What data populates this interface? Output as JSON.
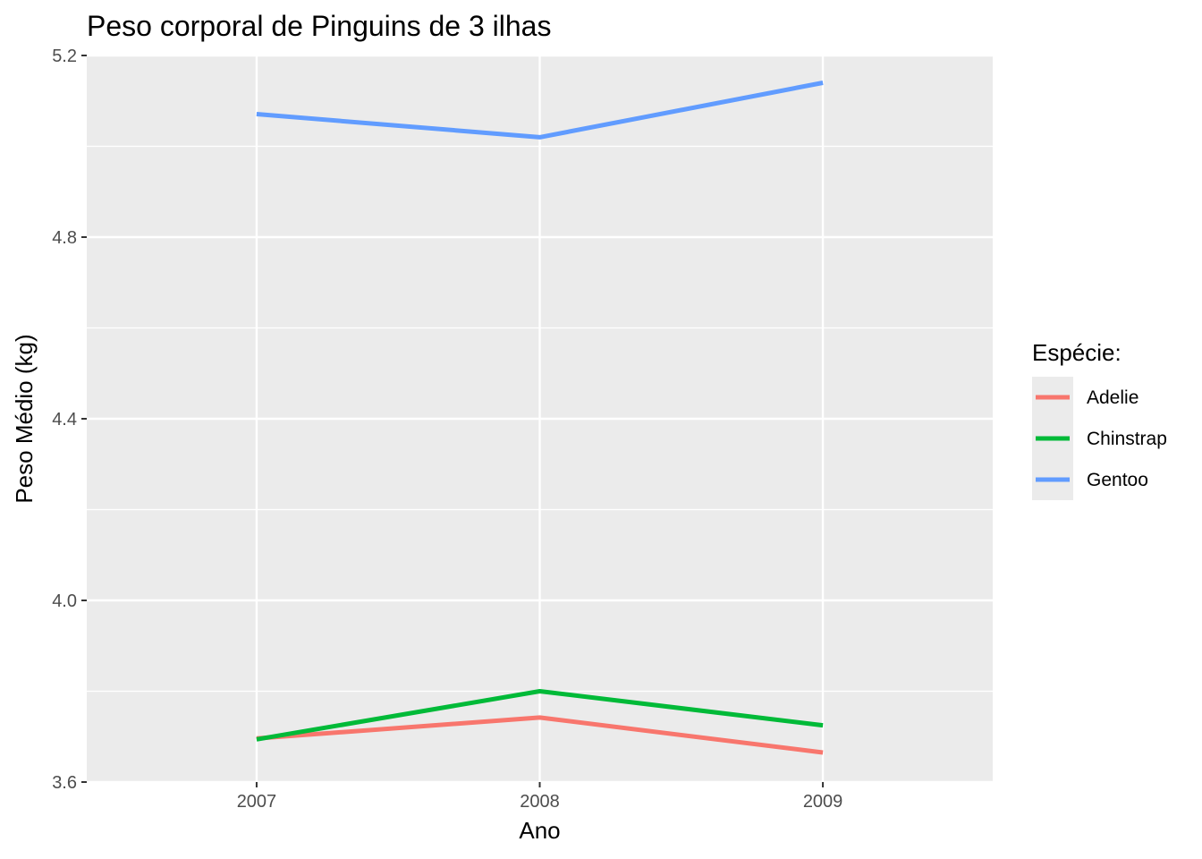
{
  "chart_data": {
    "type": "line",
    "title": "Peso corporal de Pinguins de 3 ilhas",
    "xlabel": "Ano",
    "ylabel": "Peso Médio (kg)",
    "x": [
      2007,
      2008,
      2009
    ],
    "x_ticks": [
      "2007",
      "2008",
      "2009"
    ],
    "xlim": [
      2006.4,
      2009.6
    ],
    "ylim": [
      3.6,
      5.2
    ],
    "y_ticks": [
      "3.6",
      "4.0",
      "4.4",
      "4.8",
      "5.2"
    ],
    "y_tick_values": [
      3.6,
      4.0,
      4.4,
      4.8,
      5.2
    ],
    "grid": true,
    "panel_background": "#ebebeb",
    "legend": {
      "title": "Espécie:",
      "position": "right"
    },
    "series": [
      {
        "name": "Adelie",
        "color": "#f8766d",
        "values": [
          3.696,
          3.742,
          3.665
        ]
      },
      {
        "name": "Chinstrap",
        "color": "#00ba38",
        "values": [
          3.694,
          3.8,
          3.725
        ]
      },
      {
        "name": "Gentoo",
        "color": "#619cff",
        "values": [
          5.071,
          5.02,
          5.14
        ]
      }
    ]
  }
}
